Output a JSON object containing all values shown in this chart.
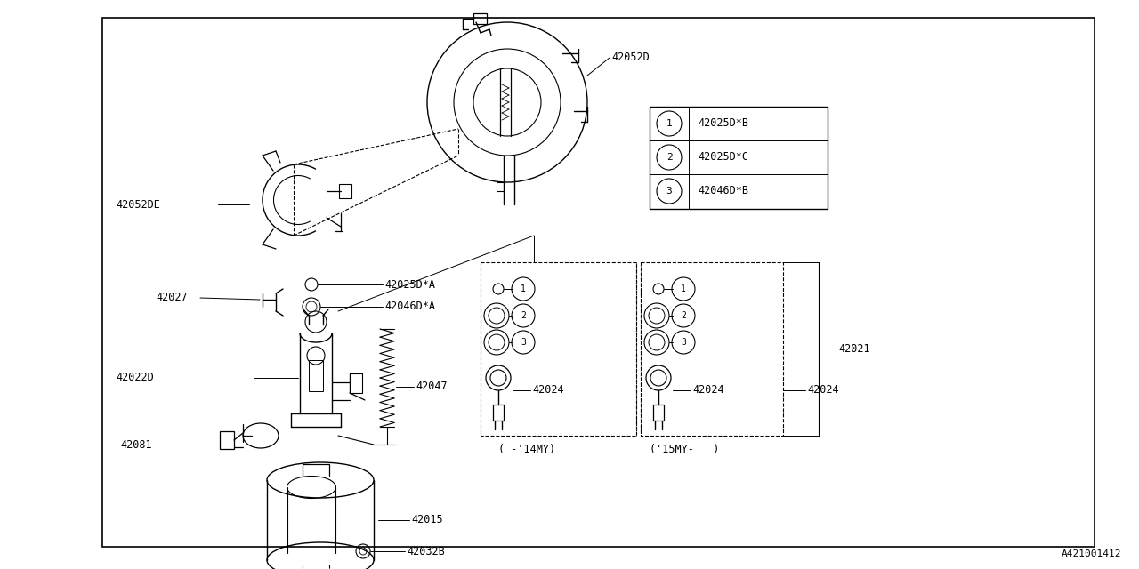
{
  "bg_color": "#ffffff",
  "line_color": "#000000",
  "watermark": "A421001412",
  "legend_items": [
    {
      "num": "1",
      "text": "42025D*B"
    },
    {
      "num": "2",
      "text": "42025D*C"
    },
    {
      "num": "3",
      "text": "42046D*B"
    }
  ],
  "font_size": 8.5
}
